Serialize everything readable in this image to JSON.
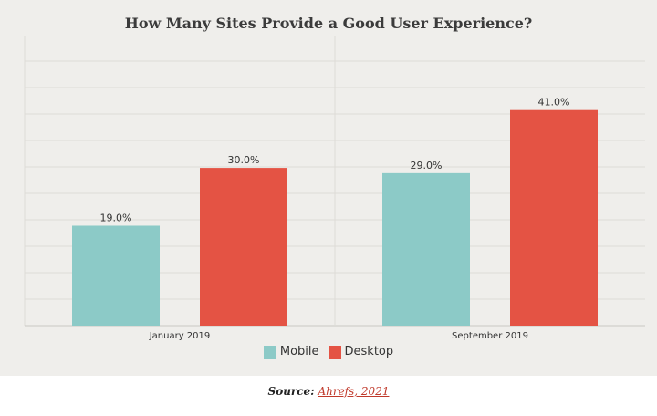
{
  "chart_data": {
    "type": "bar",
    "title": "How Many Sites Provide a Good User Experience?",
    "categories": [
      "January 2019",
      "September 2019"
    ],
    "series": [
      {
        "name": "Mobile",
        "values": [
          19.0,
          29.0
        ],
        "labels": [
          "19.0%",
          "29.0%"
        ]
      },
      {
        "name": "Desktop",
        "values": [
          30.0,
          41.0
        ],
        "labels": [
          "30.0%",
          "41.0%"
        ]
      }
    ],
    "xlabel": "",
    "ylabel": "",
    "ylim": [
      0,
      55
    ],
    "grid": true,
    "legend_position": "bottom-center"
  },
  "colors": {
    "mobile": "#8ccac7",
    "desktop": "#e45344",
    "grid": "#dddcd7",
    "background": "#efeeeb"
  },
  "source": {
    "prefix": "Source:",
    "link_text": "Ahrefs, 2021"
  }
}
